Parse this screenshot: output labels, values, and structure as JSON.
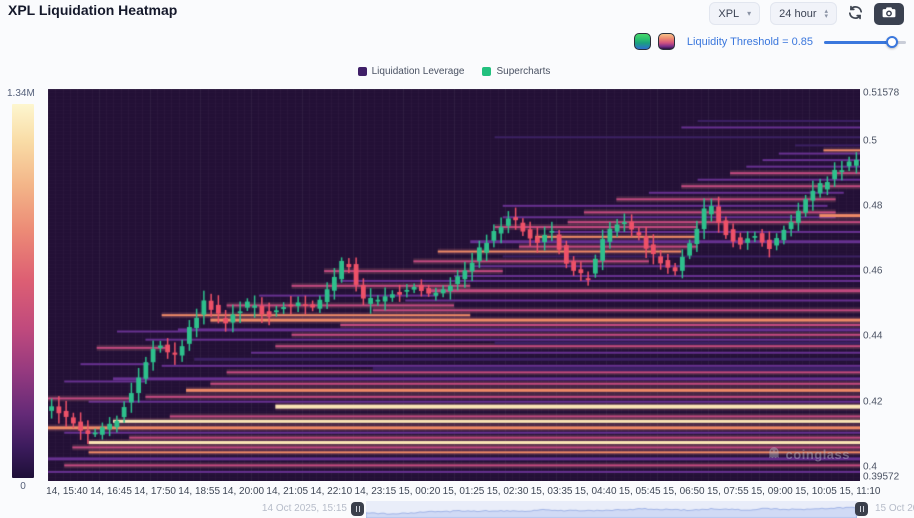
{
  "header": {
    "title": "XPL Liquidation Heatmap"
  },
  "controls": {
    "symbol_select": "XPL",
    "interval_select": "24 hour",
    "refresh_icon": "refresh-icon",
    "camera_icon": "camera-icon",
    "threshold_label": "Liquidity Threshold = 0.85",
    "threshold_value": 0.85
  },
  "legend": [
    {
      "label": "Liquidation Leverage",
      "color": "#3f1f68"
    },
    {
      "label": "Supercharts",
      "color": "#22c07e"
    }
  ],
  "colorbar": {
    "max_label": "1.34M",
    "min_label": "0"
  },
  "scrubber": {
    "start_label": "14 Oct 2025, 15:15",
    "end_label": "15 Oct 202"
  },
  "watermark": "coinglass",
  "chart_data": {
    "type": "heatmap",
    "subtype": "liquidation-heatmap-with-candlesticks",
    "title": "XPL Liquidation Heatmap",
    "y_axis": {
      "min": 0.39572,
      "max": 0.51578,
      "ticks": [
        "0.51578",
        "0.5",
        "0.48",
        "0.46",
        "0.44",
        "0.42",
        "0.4",
        "0.39572"
      ],
      "tick_values": [
        0.51578,
        0.5,
        0.48,
        0.46,
        0.44,
        0.42,
        0.4,
        0.39572
      ]
    },
    "x_ticks": [
      "14, 15:40",
      "14, 16:45",
      "14, 17:50",
      "14, 18:55",
      "14, 20:00",
      "14, 21:05",
      "14, 22:10",
      "14, 23:15",
      "15, 00:20",
      "15, 01:25",
      "15, 02:30",
      "15, 03:35",
      "15, 04:40",
      "15, 05:45",
      "15, 06:50",
      "15, 07:55",
      "15, 09:00",
      "15, 10:05",
      "15, 11:10"
    ],
    "colorbar": {
      "min": 0,
      "max_label": "1.34M"
    },
    "candle_count": 112,
    "price_path": [
      [
        0,
        0.418
      ],
      [
        0.03,
        0.4125
      ],
      [
        0.055,
        0.41
      ],
      [
        0.08,
        0.4145
      ],
      [
        0.1,
        0.424
      ],
      [
        0.13,
        0.438
      ],
      [
        0.155,
        0.4345
      ],
      [
        0.19,
        0.451
      ],
      [
        0.215,
        0.4445
      ],
      [
        0.245,
        0.45
      ],
      [
        0.27,
        0.4465
      ],
      [
        0.3,
        0.4505
      ],
      [
        0.33,
        0.449
      ],
      [
        0.365,
        0.4645
      ],
      [
        0.385,
        0.4505
      ],
      [
        0.42,
        0.4525
      ],
      [
        0.45,
        0.4555
      ],
      [
        0.475,
        0.4525
      ],
      [
        0.51,
        0.459
      ],
      [
        0.54,
        0.4695
      ],
      [
        0.57,
        0.4765
      ],
      [
        0.6,
        0.4685
      ],
      [
        0.62,
        0.4725
      ],
      [
        0.645,
        0.4605
      ],
      [
        0.665,
        0.4575
      ],
      [
        0.69,
        0.4725
      ],
      [
        0.71,
        0.4755
      ],
      [
        0.73,
        0.47
      ],
      [
        0.755,
        0.4635
      ],
      [
        0.775,
        0.4605
      ],
      [
        0.8,
        0.4715
      ],
      [
        0.815,
        0.481
      ],
      [
        0.835,
        0.4725
      ],
      [
        0.855,
        0.468
      ],
      [
        0.875,
        0.4715
      ],
      [
        0.89,
        0.4665
      ],
      [
        0.915,
        0.4745
      ],
      [
        0.945,
        0.4835
      ],
      [
        0.975,
        0.491
      ],
      [
        1,
        0.4935
      ]
    ],
    "liquidation_lines": [
      [
        0.3985,
        0.0,
        1,
        1,
        2
      ],
      [
        0.4005,
        0.02,
        1,
        2,
        2
      ],
      [
        0.4025,
        0.0,
        1,
        1,
        3
      ],
      [
        0.4045,
        0.05,
        1,
        3,
        2
      ],
      [
        0.406,
        0.03,
        1,
        2,
        2
      ],
      [
        0.4075,
        0.05,
        1,
        4,
        3
      ],
      [
        0.409,
        0.1,
        1,
        2,
        2
      ],
      [
        0.4105,
        0.02,
        1,
        1,
        2
      ],
      [
        0.412,
        0.0,
        1,
        3,
        3
      ],
      [
        0.414,
        0.08,
        1,
        4,
        3
      ],
      [
        0.4155,
        0.15,
        1,
        2,
        2
      ],
      [
        0.4185,
        0.28,
        1,
        4,
        4
      ],
      [
        0.42,
        0.05,
        1,
        1,
        2
      ],
      [
        0.4215,
        0.12,
        1,
        2,
        2
      ],
      [
        0.4235,
        0.17,
        1,
        3,
        3
      ],
      [
        0.4255,
        0.2,
        1,
        2,
        2
      ],
      [
        0.427,
        0.08,
        1,
        1,
        3
      ],
      [
        0.429,
        0.22,
        1,
        2,
        2
      ],
      [
        0.431,
        0.14,
        1,
        1,
        2
      ],
      [
        0.433,
        0.18,
        1,
        0,
        3
      ],
      [
        0.435,
        0.25,
        1,
        1,
        2
      ],
      [
        0.437,
        0.28,
        1,
        2,
        2
      ],
      [
        0.421,
        0.0,
        0.1,
        2,
        2
      ],
      [
        0.4262,
        0.02,
        0.12,
        1,
        2
      ],
      [
        0.4315,
        0.04,
        0.125,
        1,
        2
      ],
      [
        0.4365,
        0.06,
        0.145,
        2,
        2
      ],
      [
        0.4415,
        0.085,
        0.175,
        1,
        2
      ],
      [
        0.439,
        0.12,
        1,
        1,
        2
      ],
      [
        0.4405,
        0.3,
        1,
        2,
        2
      ],
      [
        0.442,
        0.16,
        1,
        1,
        3
      ],
      [
        0.4435,
        0.36,
        1,
        2,
        2
      ],
      [
        0.445,
        0.2,
        1,
        3,
        3
      ],
      [
        0.4465,
        0.14,
        0.52,
        3,
        2
      ],
      [
        0.448,
        0.4,
        1,
        2,
        2
      ],
      [
        0.4495,
        0.22,
        0.5,
        2,
        2
      ],
      [
        0.451,
        0.44,
        1,
        1,
        2
      ],
      [
        0.4525,
        0.26,
        0.48,
        1,
        2
      ],
      [
        0.454,
        0.47,
        1,
        2,
        3
      ],
      [
        0.4555,
        0.3,
        0.52,
        2,
        2
      ],
      [
        0.457,
        0.36,
        1,
        1,
        2
      ],
      [
        0.4585,
        0.5,
        1,
        1,
        2
      ],
      [
        0.46,
        0.34,
        0.56,
        2,
        2
      ],
      [
        0.4615,
        0.52,
        1,
        1,
        2
      ],
      [
        0.463,
        0.45,
        0.74,
        2,
        2
      ],
      [
        0.4645,
        0.56,
        1,
        0,
        2
      ],
      [
        0.466,
        0.48,
        0.78,
        3,
        2
      ],
      [
        0.4675,
        0.58,
        0.8,
        2,
        2
      ],
      [
        0.469,
        0.52,
        1,
        1,
        3
      ],
      [
        0.4705,
        0.6,
        0.8,
        3,
        2
      ],
      [
        0.472,
        0.62,
        1,
        1,
        2
      ],
      [
        0.4735,
        0.55,
        0.8,
        2,
        2
      ],
      [
        0.475,
        0.64,
        1,
        2,
        2
      ],
      [
        0.4765,
        0.56,
        0.97,
        1,
        2
      ],
      [
        0.478,
        0.66,
        0.97,
        2,
        2
      ],
      [
        0.48,
        0.56,
        0.96,
        1,
        2
      ],
      [
        0.482,
        0.7,
        0.97,
        2,
        2
      ],
      [
        0.484,
        0.74,
        0.98,
        1,
        2
      ],
      [
        0.486,
        0.78,
        1,
        2,
        2
      ],
      [
        0.488,
        0.8,
        1,
        1,
        2
      ],
      [
        0.49,
        0.84,
        1,
        2,
        2
      ],
      [
        0.492,
        0.86,
        1,
        1,
        2
      ],
      [
        0.494,
        0.88,
        1,
        1,
        2
      ],
      [
        0.496,
        0.9,
        1,
        1,
        2
      ],
      [
        0.4985,
        0.92,
        1,
        0,
        2
      ],
      [
        0.501,
        0.55,
        1,
        0,
        2
      ],
      [
        0.504,
        0.78,
        1,
        1,
        2
      ],
      [
        0.506,
        0.8,
        1,
        0,
        2
      ],
      [
        0.43,
        0.4,
        1,
        0,
        4
      ],
      [
        0.438,
        0.55,
        1,
        0,
        3
      ],
      [
        0.497,
        0.955,
        1,
        3,
        2
      ],
      [
        0.477,
        0.95,
        1,
        3,
        3
      ]
    ],
    "palette": {
      "bg": "#231036",
      "grid": "rgba(255,255,255,0.028)",
      "up": "#2ec08c",
      "down": "#ee5168",
      "line_colors": [
        "#3c2163",
        "#673190",
        "#c2497f",
        "#ef8a67",
        "#f9e4b5"
      ]
    },
    "legend_entries": [
      "Liquidation Leverage",
      "Supercharts"
    ],
    "grid": true,
    "legend_position": "top-center"
  }
}
